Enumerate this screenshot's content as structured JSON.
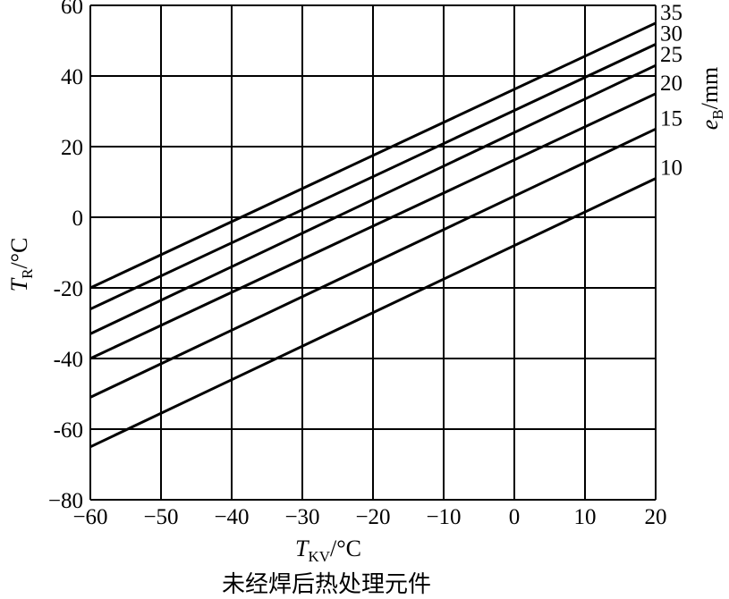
{
  "chart_data": {
    "type": "line",
    "caption": "未经焊后热处理元件",
    "xlabel": {
      "symbol": "T",
      "subscript": "KV",
      "unit": "/°C"
    },
    "ylabel": {
      "symbol": "T",
      "subscript": "R",
      "unit": "/°C"
    },
    "series_label": {
      "symbol": "e",
      "subscript": "B",
      "unit": "/mm"
    },
    "xlim": [
      -60,
      20
    ],
    "ylim": [
      -80,
      60
    ],
    "xticks": [
      -60,
      -50,
      -40,
      -30,
      -20,
      -10,
      0,
      10,
      20
    ],
    "yticks": [
      60,
      40,
      20,
      0,
      -20,
      -40,
      -60,
      -80
    ],
    "xtick_labels": [
      "−60",
      "−50",
      "−40",
      "−30",
      "−20",
      "−10",
      "0",
      "10",
      "20"
    ],
    "ytick_labels": [
      "60",
      "40",
      "20",
      "0",
      "-20",
      "-40",
      "-60",
      "−80"
    ],
    "grid": true,
    "series": [
      {
        "name": "35",
        "x": [
          -60,
          20
        ],
        "y": [
          -20,
          55
        ]
      },
      {
        "name": "30",
        "x": [
          -60,
          20
        ],
        "y": [
          -26,
          49
        ]
      },
      {
        "name": "25",
        "x": [
          -60,
          20
        ],
        "y": [
          -33,
          43
        ]
      },
      {
        "name": "20",
        "x": [
          -60,
          20
        ],
        "y": [
          -40,
          35
        ]
      },
      {
        "name": "15",
        "x": [
          -60,
          20
        ],
        "y": [
          -51,
          25
        ]
      },
      {
        "name": "10",
        "x": [
          -60,
          20
        ],
        "y": [
          -65,
          11
        ]
      }
    ]
  }
}
